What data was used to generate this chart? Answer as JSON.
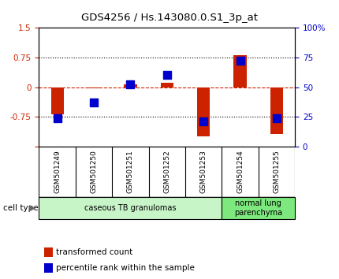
{
  "title": "GDS4256 / Hs.143080.0.S1_3p_at",
  "samples": [
    "GSM501249",
    "GSM501250",
    "GSM501251",
    "GSM501252",
    "GSM501253",
    "GSM501254",
    "GSM501255"
  ],
  "red_bars": [
    -0.68,
    -0.02,
    0.08,
    0.12,
    -1.25,
    0.82,
    -1.18
  ],
  "blue_squares_left_axis": [
    -0.78,
    -0.38,
    0.08,
    0.32,
    -0.87,
    0.68,
    -0.78
  ],
  "ylim_left": [
    -1.5,
    1.5
  ],
  "ylim_right": [
    0,
    100
  ],
  "yticks_left": [
    -1.5,
    -0.75,
    0,
    0.75,
    1.5
  ],
  "ytick_labels_left": [
    "",
    "-0.75",
    "0",
    "0.75",
    "1.5"
  ],
  "yticks_right": [
    0,
    25,
    50,
    75,
    100
  ],
  "ytick_labels_right": [
    "0",
    "25",
    "50",
    "75",
    "100%"
  ],
  "groups": [
    {
      "label": "caseous TB granulomas",
      "n_samples": 5,
      "color": "#c8f5c8"
    },
    {
      "label": "normal lung\nparenchyma",
      "n_samples": 2,
      "color": "#7de87d"
    }
  ],
  "cell_type_label": "cell type",
  "legend_red": "transformed count",
  "legend_blue": "percentile rank within the sample",
  "bar_color": "#cc2200",
  "square_color": "#0000cc",
  "bg_color": "#ffffff",
  "sample_box_color": "#d8d8d8",
  "bar_width": 0.35,
  "square_size": 45,
  "title_fontsize": 9.5,
  "tick_fontsize": 7.5,
  "label_fontsize": 7.5,
  "sample_fontsize": 6.5
}
